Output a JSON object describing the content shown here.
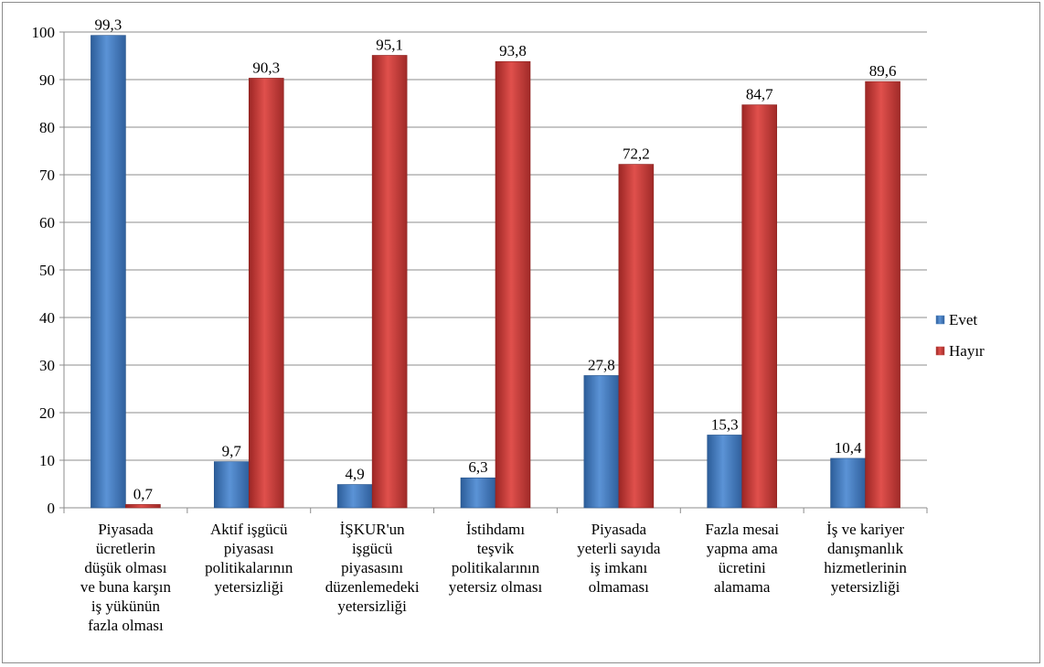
{
  "chart_data": {
    "type": "bar",
    "categories": [
      [
        "Piyasada",
        "ücretlerin",
        "düşük olması",
        "ve buna karşın",
        "iş yükünün",
        "fazla olması"
      ],
      [
        "Aktif işgücü",
        "piyasası",
        "politikalarının",
        "yetersizliği"
      ],
      [
        "İŞKUR'un",
        "işgücü",
        "piyasasını",
        "düzenlemedeki",
        "yetersizliği"
      ],
      [
        "İstihdamı",
        "teşvik",
        "politikalarının",
        "yetersiz olması"
      ],
      [
        "Piyasada",
        "yeterli sayıda",
        "iş imkanı",
        "olmaması"
      ],
      [
        "Fazla mesai",
        "yapma ama",
        "ücretini",
        "alamama"
      ],
      [
        "İş ve kariyer",
        "danışmanlık",
        "hizmetlerinin",
        "yetersizliği"
      ]
    ],
    "series": [
      {
        "name": "Evet",
        "color": "#4f81bd",
        "values": [
          99.3,
          9.7,
          4.9,
          6.3,
          27.8,
          15.3,
          10.4
        ],
        "labels": [
          "99,3",
          "9,7",
          "4,9",
          "6,3",
          "27,8",
          "15,3",
          "10,4"
        ]
      },
      {
        "name": "Hayır",
        "color": "#c0504d",
        "values": [
          0.7,
          90.3,
          95.1,
          93.8,
          72.2,
          84.7,
          89.6
        ],
        "labels": [
          "0,7",
          "90,3",
          "95,1",
          "93,8",
          "72,2",
          "84,7",
          "89,6"
        ]
      }
    ],
    "ylim": [
      0,
      100
    ],
    "yticks": [
      0,
      10,
      20,
      30,
      40,
      50,
      60,
      70,
      80,
      90,
      100
    ],
    "grid": true,
    "legend": "right"
  }
}
